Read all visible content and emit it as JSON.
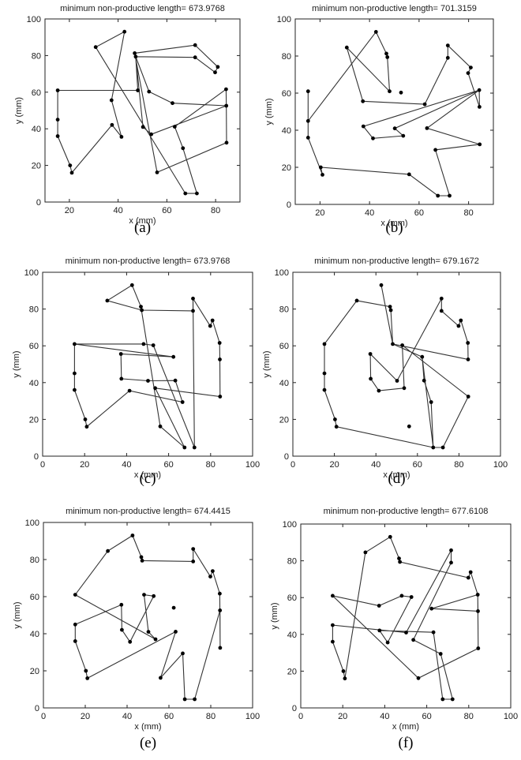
{
  "figure": {
    "background": "#ffffff",
    "line_color": "#333333",
    "point_color": "#000000"
  },
  "points": [
    [
      15.2,
      61
    ],
    [
      15.2,
      45
    ],
    [
      15.2,
      36
    ],
    [
      20.3,
      20
    ],
    [
      21,
      16
    ],
    [
      30.8,
      84.6
    ],
    [
      37.3,
      55.6
    ],
    [
      37.5,
      42.1
    ],
    [
      41.4,
      35.6
    ],
    [
      42.6,
      93
    ],
    [
      46.8,
      81.3
    ],
    [
      47.2,
      79.4
    ],
    [
      48.1,
      61
    ],
    [
      50.2,
      41
    ],
    [
      52.7,
      60.3
    ],
    [
      53.6,
      37
    ],
    [
      56,
      16.2
    ],
    [
      62.3,
      54
    ],
    [
      63.2,
      41.1
    ],
    [
      66.6,
      29.4
    ],
    [
      67.6,
      4.7
    ],
    [
      71.6,
      85.7
    ],
    [
      71.6,
      79
    ],
    [
      72.3,
      4.7
    ],
    [
      79.8,
      70.8
    ],
    [
      80.9,
      73.8
    ],
    [
      84.3,
      61.6
    ],
    [
      84.4,
      52.6
    ],
    [
      84.5,
      32.4
    ]
  ],
  "chart_data": [
    {
      "type": "line",
      "panel": "a",
      "caption": "(a)",
      "title": "minimum non-productive length=   673.9768",
      "xlabel": "x (mm)",
      "ylabel": "y (mm)",
      "xlim": [
        10,
        90
      ],
      "ylim": [
        0,
        100
      ],
      "xticks": [
        20,
        40,
        60,
        80
      ],
      "yticks": [
        0,
        20,
        40,
        60,
        80,
        100
      ],
      "order": [
        12,
        0,
        1,
        2,
        3,
        4,
        7,
        8,
        6,
        9,
        5,
        20,
        23,
        19,
        18,
        26,
        27,
        28,
        16,
        10,
        21,
        25,
        24,
        22,
        11,
        14,
        17,
        27,
        15,
        13,
        11,
        12
      ]
    },
    {
      "type": "line",
      "panel": "b",
      "caption": "(b)",
      "title": "minimum non-productive length=   701.3159",
      "xlabel": "x (mm)",
      "ylabel": "y (mm)",
      "xlim": [
        10,
        90
      ],
      "ylim": [
        0,
        100
      ],
      "xticks": [
        20,
        40,
        60,
        80
      ],
      "yticks": [
        0,
        20,
        40,
        60,
        80,
        100
      ],
      "order": [
        9,
        1,
        0,
        2,
        4,
        3,
        16,
        20,
        23,
        19,
        28,
        18,
        26,
        13,
        15,
        8,
        7,
        26,
        27,
        24,
        25,
        21,
        22,
        17,
        6,
        5,
        12,
        11,
        10,
        9
      ]
    },
    {
      "type": "line",
      "panel": "c",
      "caption": "(c)",
      "title": "minimum non-productive length=   673.9768",
      "xlabel": "x (mm)",
      "ylabel": "y (mm)",
      "xlim": [
        0,
        100
      ],
      "ylim": [
        0,
        100
      ],
      "xticks": [
        0,
        20,
        40,
        60,
        80,
        100
      ],
      "yticks": [
        0,
        20,
        40,
        60,
        80,
        100
      ],
      "order": [
        0,
        1,
        2,
        3,
        4,
        8,
        19,
        18,
        13,
        7,
        6,
        17,
        0,
        12,
        14,
        23,
        21,
        24,
        25,
        26,
        27,
        28,
        15,
        20,
        16,
        10,
        9,
        5,
        11,
        22,
        21
      ]
    },
    {
      "type": "line",
      "panel": "d",
      "caption": "(d)",
      "title": "minimum non-productive length=   679.1672",
      "xlabel": "x (mm)",
      "ylabel": "y (mm)",
      "xlim": [
        0,
        100
      ],
      "ylim": [
        0,
        100
      ],
      "xticks": [
        0,
        20,
        40,
        60,
        80,
        100
      ],
      "yticks": [
        0,
        20,
        40,
        60,
        80,
        100
      ],
      "order": [
        9,
        12,
        17,
        20,
        23,
        28,
        14,
        15,
        8,
        7,
        6,
        13,
        21,
        22,
        24,
        25,
        26,
        27,
        12,
        11,
        10,
        5,
        0,
        1,
        2,
        3,
        4,
        20,
        19,
        18,
        17
      ]
    },
    {
      "type": "line",
      "panel": "e",
      "caption": "(e)",
      "title": "minimum non-productive length=   674.4415",
      "xlabel": "x (mm)",
      "ylabel": "y (mm)",
      "xlim": [
        0,
        100
      ],
      "ylim": [
        0,
        100
      ],
      "xticks": [
        0,
        20,
        40,
        60,
        80,
        100
      ],
      "yticks": [
        0,
        20,
        40,
        60,
        80,
        100
      ],
      "order": [
        0,
        15,
        13,
        12,
        14,
        8,
        7,
        6,
        1,
        2,
        3,
        4,
        18,
        16,
        19,
        20,
        23,
        27,
        28,
        26,
        25,
        24,
        21,
        22,
        11,
        10,
        9,
        5,
        0
      ]
    },
    {
      "type": "line",
      "panel": "f",
      "caption": "(f)",
      "title": "minimum non-productive length=   677.6108",
      "xlabel": "x (mm)",
      "ylabel": "y (mm)",
      "xlim": [
        0,
        100
      ],
      "ylim": [
        0,
        100
      ],
      "xticks": [
        0,
        20,
        40,
        60,
        80,
        100
      ],
      "yticks": [
        0,
        20,
        40,
        60,
        80,
        100
      ],
      "order": [
        22,
        21,
        13,
        1,
        2,
        3,
        4,
        5,
        9,
        10,
        11,
        24,
        25,
        26,
        27,
        17,
        26,
        28,
        16,
        0,
        6,
        12,
        14,
        8,
        7,
        18,
        20,
        23,
        19,
        15,
        22
      ]
    }
  ]
}
